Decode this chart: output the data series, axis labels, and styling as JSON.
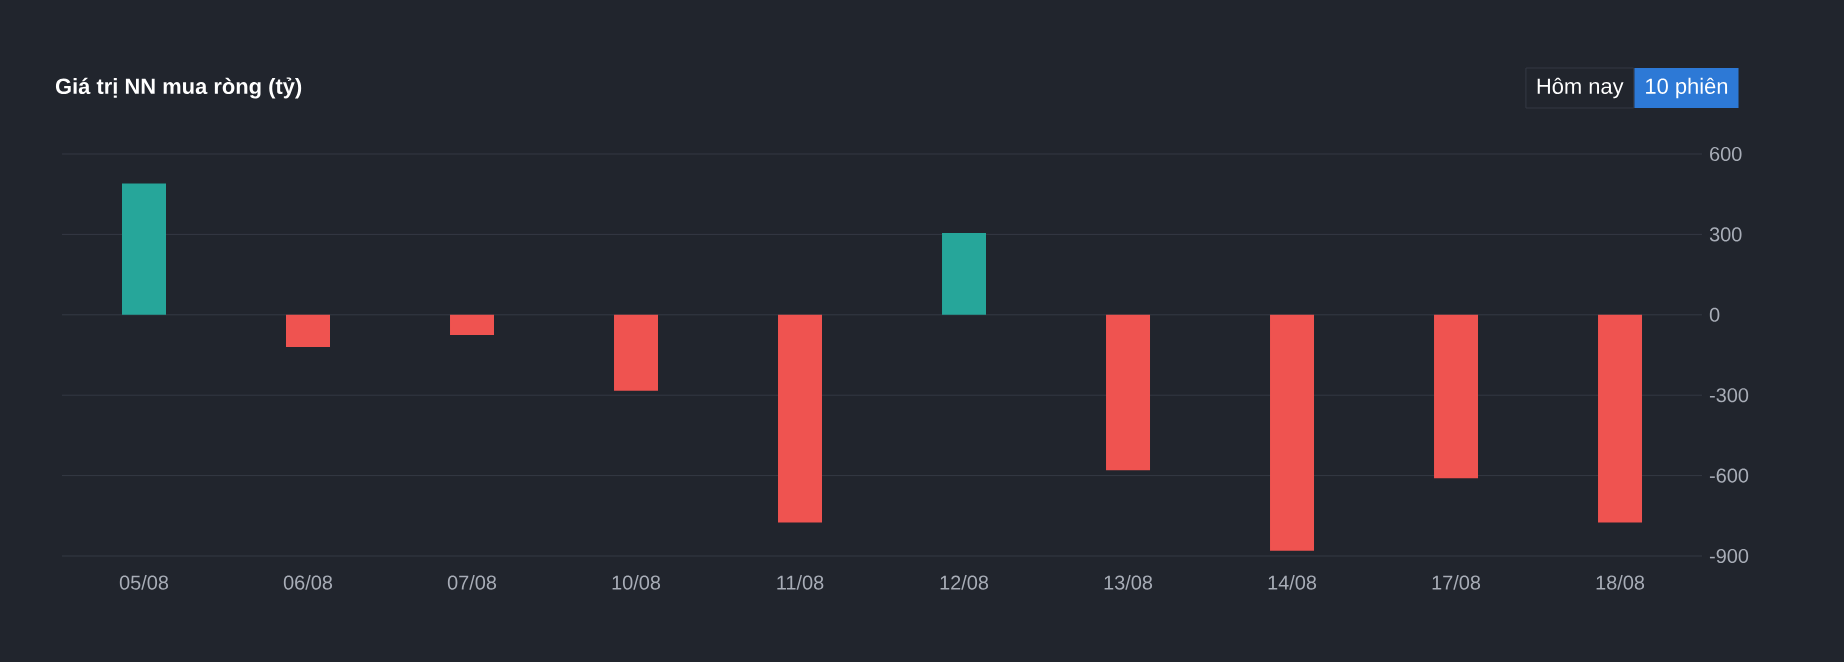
{
  "chart_data": {
    "type": "bar",
    "title": "Giá trị NN mua ròng (tỷ)",
    "categories": [
      "05/08",
      "06/08",
      "07/08",
      "10/08",
      "11/08",
      "12/08",
      "13/08",
      "14/08",
      "17/08",
      "18/08"
    ],
    "values": [
      490,
      -120,
      -75,
      -283,
      -775,
      305,
      -580,
      -880,
      -610,
      -775
    ],
    "colors": [
      "#26a69a",
      "#ef5350",
      "#ef5350",
      "#ef5350",
      "#ef5350",
      "#26a69a",
      "#ef5350",
      "#ef5350",
      "#ef5350",
      "#ef5350"
    ],
    "ylim": [
      -900,
      600
    ],
    "yticks": [
      600,
      300,
      0,
      -300,
      -600,
      -900
    ],
    "grid": "y",
    "annotations": [
      "Hôm nay",
      "10 phiên"
    ]
  }
}
